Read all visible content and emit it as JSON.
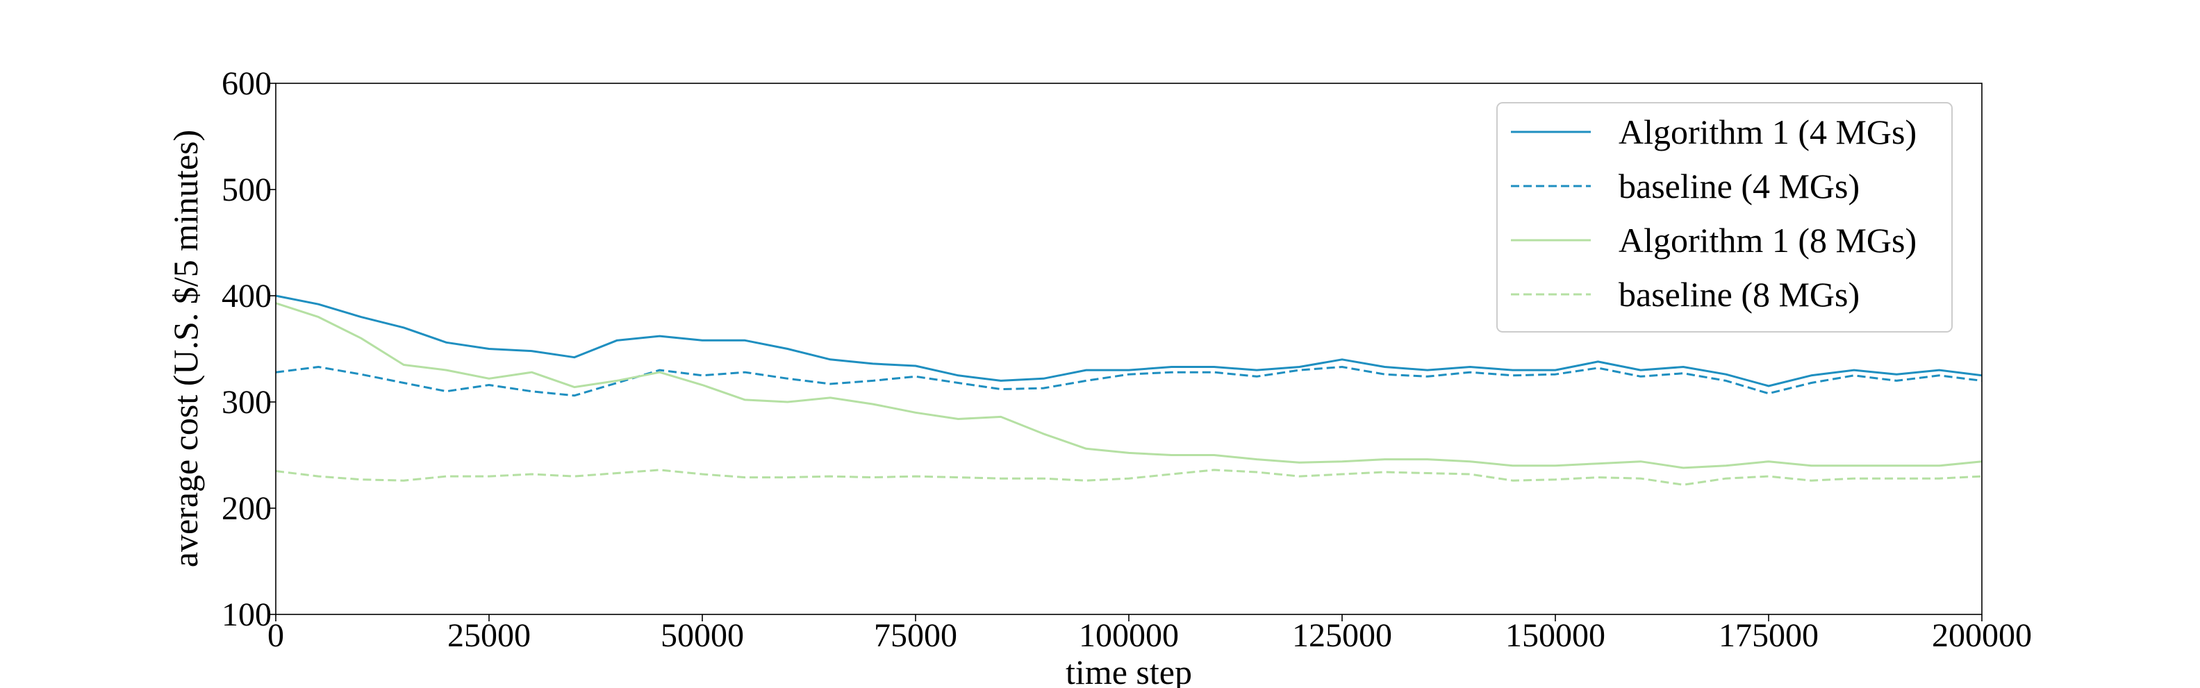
{
  "chart_data": {
    "type": "line",
    "title": "",
    "xlabel": "time step",
    "ylabel": "average cost (U.S. $/5 minutes)",
    "xlim": [
      0,
      200000
    ],
    "ylim": [
      100,
      600
    ],
    "x_ticks": [
      "0",
      "25000",
      "50000",
      "75000",
      "100000",
      "125000",
      "150000",
      "175000",
      "200000"
    ],
    "y_ticks": [
      "100",
      "200",
      "300",
      "400",
      "500",
      "600"
    ],
    "grid": false,
    "legend_position": "top-right",
    "series": [
      {
        "name": "Algorithm 1 (4 MGs)",
        "color": "#1f8fc0",
        "dash": "solid",
        "x": [
          0,
          5000,
          10000,
          15000,
          20000,
          25000,
          30000,
          35000,
          40000,
          45000,
          50000,
          55000,
          60000,
          65000,
          70000,
          75000,
          80000,
          85000,
          90000,
          95000,
          100000,
          105000,
          110000,
          115000,
          120000,
          125000,
          130000,
          135000,
          140000,
          145000,
          150000,
          155000,
          160000,
          165000,
          170000,
          175000,
          180000,
          185000,
          190000,
          195000,
          200000
        ],
        "y": [
          400,
          392,
          380,
          370,
          356,
          350,
          348,
          342,
          358,
          362,
          358,
          358,
          350,
          340,
          336,
          334,
          325,
          320,
          322,
          330,
          330,
          333,
          333,
          330,
          333,
          340,
          333,
          330,
          333,
          330,
          330,
          338,
          330,
          333,
          326,
          315,
          325,
          330,
          326,
          330,
          325
        ]
      },
      {
        "name": "baseline (4 MGs)",
        "color": "#1f8fc0",
        "dash": "dashed",
        "x": [
          0,
          5000,
          10000,
          15000,
          20000,
          25000,
          30000,
          35000,
          40000,
          45000,
          50000,
          55000,
          60000,
          65000,
          70000,
          75000,
          80000,
          85000,
          90000,
          95000,
          100000,
          105000,
          110000,
          115000,
          120000,
          125000,
          130000,
          135000,
          140000,
          145000,
          150000,
          155000,
          160000,
          165000,
          170000,
          175000,
          180000,
          185000,
          190000,
          195000,
          200000
        ],
        "y": [
          328,
          333,
          326,
          318,
          310,
          316,
          310,
          306,
          318,
          330,
          325,
          328,
          322,
          317,
          320,
          324,
          318,
          312,
          313,
          320,
          326,
          328,
          328,
          324,
          330,
          333,
          326,
          324,
          328,
          325,
          326,
          332,
          324,
          327,
          320,
          308,
          318,
          325,
          320,
          325,
          320
        ]
      },
      {
        "name": "Algorithm 1 (8 MGs)",
        "color": "#b5e0a3",
        "dash": "solid",
        "x": [
          0,
          5000,
          10000,
          15000,
          20000,
          25000,
          30000,
          35000,
          40000,
          45000,
          50000,
          55000,
          60000,
          65000,
          70000,
          75000,
          80000,
          85000,
          90000,
          95000,
          100000,
          105000,
          110000,
          115000,
          120000,
          125000,
          130000,
          135000,
          140000,
          145000,
          150000,
          155000,
          160000,
          165000,
          170000,
          175000,
          180000,
          185000,
          190000,
          195000,
          200000
        ],
        "y": [
          393,
          380,
          360,
          335,
          330,
          322,
          328,
          314,
          320,
          328,
          316,
          302,
          300,
          304,
          298,
          290,
          284,
          286,
          270,
          256,
          252,
          250,
          250,
          246,
          243,
          244,
          246,
          246,
          244,
          240,
          240,
          242,
          244,
          238,
          240,
          244,
          240,
          240,
          240,
          240,
          244
        ]
      },
      {
        "name": "baseline (8 MGs)",
        "color": "#b5e0a3",
        "dash": "dashed",
        "x": [
          0,
          5000,
          10000,
          15000,
          20000,
          25000,
          30000,
          35000,
          40000,
          45000,
          50000,
          55000,
          60000,
          65000,
          70000,
          75000,
          80000,
          85000,
          90000,
          95000,
          100000,
          105000,
          110000,
          115000,
          120000,
          125000,
          130000,
          135000,
          140000,
          145000,
          150000,
          155000,
          160000,
          165000,
          170000,
          175000,
          180000,
          185000,
          190000,
          195000,
          200000
        ],
        "y": [
          235,
          230,
          227,
          226,
          230,
          230,
          232,
          230,
          233,
          236,
          232,
          229,
          229,
          230,
          229,
          230,
          229,
          228,
          228,
          226,
          228,
          232,
          236,
          234,
          230,
          232,
          234,
          233,
          232,
          226,
          227,
          229,
          228,
          222,
          228,
          230,
          226,
          228,
          228,
          228,
          230
        ]
      }
    ]
  }
}
